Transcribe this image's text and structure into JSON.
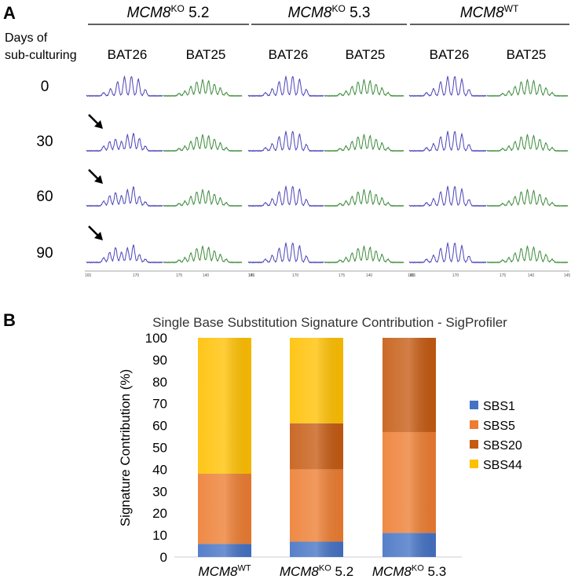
{
  "panel_a": {
    "label": "A",
    "groups": [
      {
        "gene": "MCM8",
        "sup": "KO",
        "suffix": " 5.2"
      },
      {
        "gene": "MCM8",
        "sup": "KO",
        "suffix": " 5.3"
      },
      {
        "gene": "MCM8",
        "sup": "WT",
        "suffix": ""
      }
    ],
    "row_header_line1": "Days of",
    "row_header_line2": "sub-culturing",
    "markers": [
      "BAT26",
      "BAT25"
    ],
    "days": [
      "0",
      "30",
      "60",
      "90"
    ],
    "arrow_rows": [
      "30",
      "60",
      "90"
    ],
    "axis_ticks": [
      "165",
      "170",
      "175",
      "135",
      "140",
      "145"
    ],
    "colors": {
      "bat26": "#4a44b8",
      "bat25": "#3c8a3c",
      "divider": "#000000"
    }
  },
  "panel_b": {
    "label": "B",
    "chart_data": {
      "type": "bar",
      "stacked": true,
      "title": "Single Base Substitution Signature Contribution - SigProfiler",
      "xlabel": "",
      "ylabel": "Signature Contribution (%)",
      "ylim": [
        0,
        100
      ],
      "yticks": [
        "0",
        "10",
        "20",
        "30",
        "40",
        "50",
        "60",
        "70",
        "80",
        "90",
        "100"
      ],
      "categories": [
        {
          "gene": "MCM8",
          "sup": "WT",
          "suffix": ""
        },
        {
          "gene": "MCM8",
          "sup": "KO",
          "suffix": " 5.2"
        },
        {
          "gene": "MCM8",
          "sup": "KO",
          "suffix": " 5.3"
        }
      ],
      "series": [
        {
          "name": "SBS1",
          "color": "#4472c4",
          "values": [
            6,
            7,
            11
          ]
        },
        {
          "name": "SBS5",
          "color": "#ed7d31",
          "values": [
            32,
            33,
            46
          ]
        },
        {
          "name": "SBS20",
          "color": "#c55a11",
          "values": [
            0,
            21,
            43
          ]
        },
        {
          "name": "SBS44",
          "color": "#ffc000",
          "values": [
            62,
            39,
            0
          ]
        }
      ],
      "legend_position": "right"
    }
  }
}
